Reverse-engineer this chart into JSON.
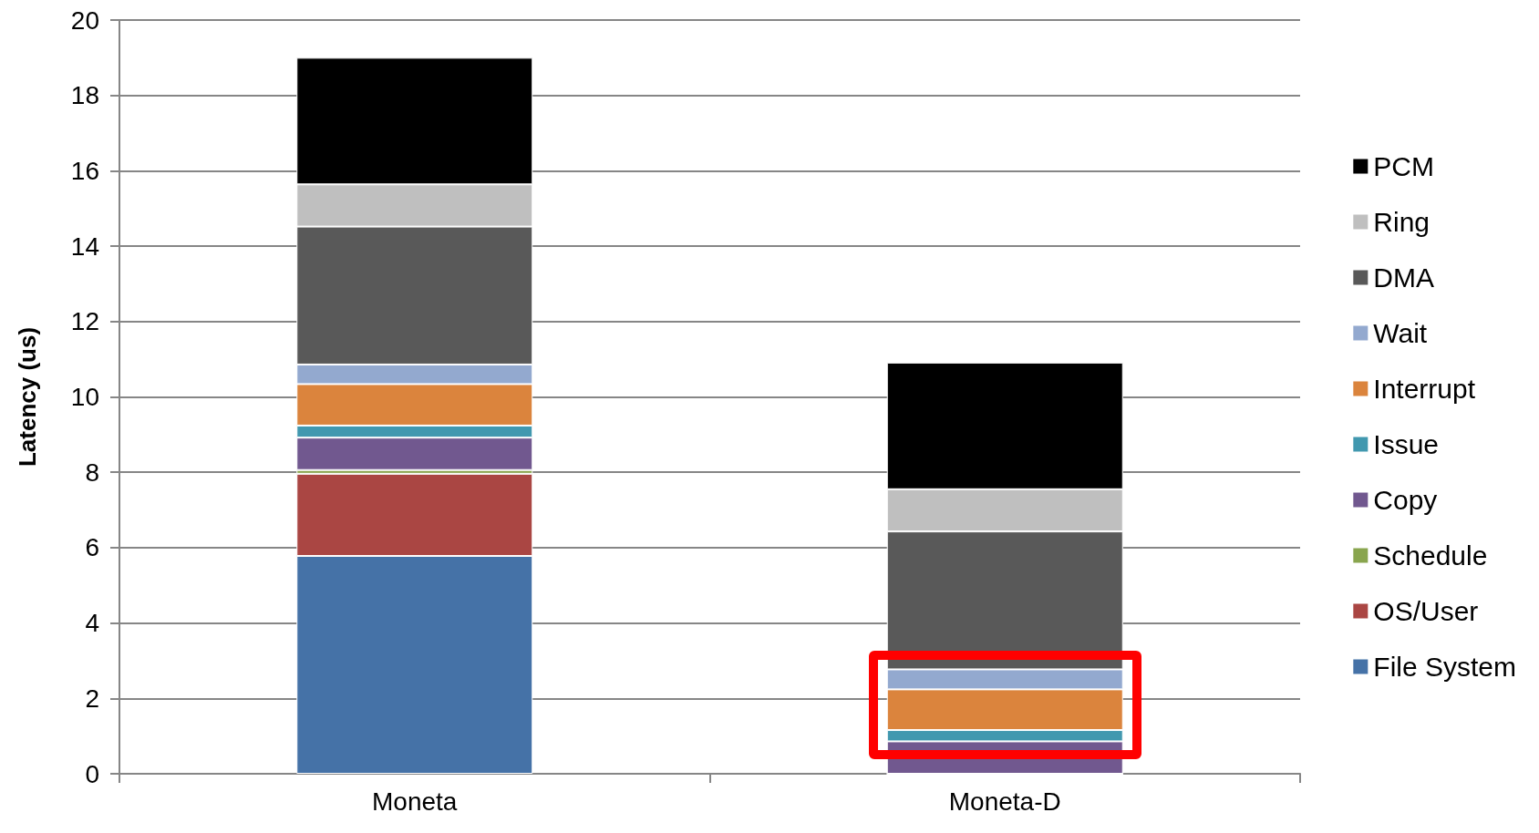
{
  "chart_data": {
    "type": "bar",
    "stacked": true,
    "ylabel": "Latency (us)",
    "categories": [
      "Moneta",
      "Moneta-D"
    ],
    "series": [
      {
        "name": "File System",
        "color": "#4572a7",
        "values": [
          5.78,
          0
        ]
      },
      {
        "name": "OS/User",
        "color": "#aa4643",
        "values": [
          2.18,
          0
        ]
      },
      {
        "name": "Schedule",
        "color": "#89a54e",
        "values": [
          0.1,
          0
        ]
      },
      {
        "name": "Copy",
        "color": "#71588f",
        "values": [
          0.86,
          0.86
        ]
      },
      {
        "name": "Issue",
        "color": "#4198af",
        "values": [
          0.32,
          0.3
        ]
      },
      {
        "name": "Interrupt",
        "color": "#db843d",
        "values": [
          1.1,
          1.08
        ]
      },
      {
        "name": "Wait",
        "color": "#93a9cf",
        "values": [
          0.52,
          0.53
        ]
      },
      {
        "name": "DMA",
        "color": "#595959",
        "values": [
          3.66,
          3.66
        ]
      },
      {
        "name": "Ring",
        "color": "#bfbfbf",
        "values": [
          1.12,
          1.12
        ]
      },
      {
        "name": "PCM",
        "color": "#000000",
        "values": [
          3.36,
          3.36
        ]
      }
    ],
    "ylim": [
      0,
      20
    ],
    "yticks": [
      0,
      2,
      4,
      6,
      8,
      10,
      12,
      14,
      16,
      18,
      20
    ],
    "grid": "y",
    "legend": "right"
  }
}
